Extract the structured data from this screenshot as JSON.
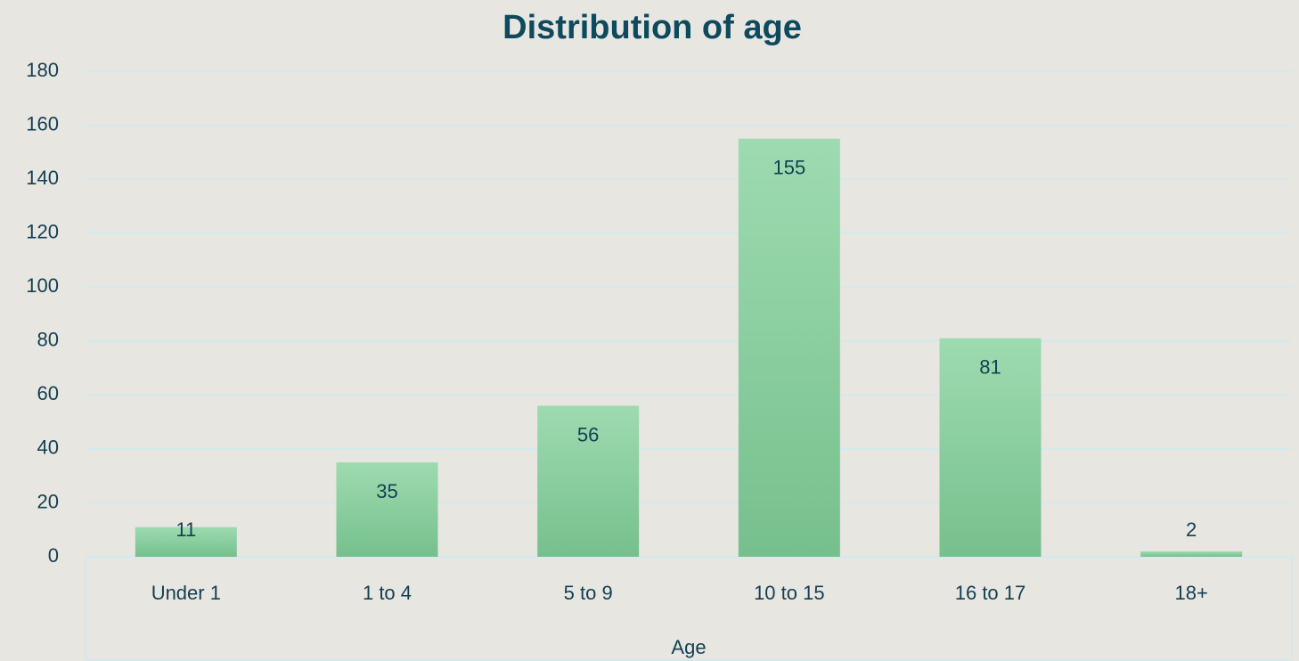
{
  "chart_data": {
    "type": "bar",
    "title": "Distribution of age",
    "categories": [
      "Under 1",
      "1 to 4",
      "5 to 9",
      "10 to 15",
      "16 to 17",
      "18+"
    ],
    "values": [
      11,
      35,
      56,
      155,
      81,
      2
    ],
    "color": "#8dd3a3",
    "xlabel": "Age",
    "ylim": [
      0,
      180
    ],
    "yticks": [
      0,
      20,
      40,
      60,
      80,
      100,
      120,
      140,
      160,
      180
    ],
    "grid": true,
    "data_labels": true
  }
}
